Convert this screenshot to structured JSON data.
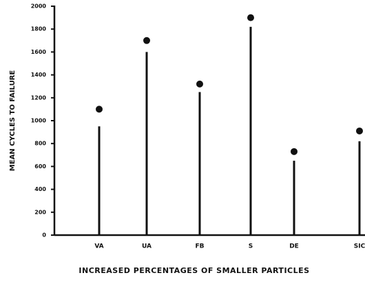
{
  "chart_data": {
    "type": "lollipop",
    "xlabel": "INCREASED PERCENTAGES OF SMALLER PARTICLES",
    "ylabel": "MEAN CYCLES TO FAILURE",
    "categories": [
      "VA",
      "UA",
      "FB",
      "S",
      "DE",
      "SIC"
    ],
    "series": [
      {
        "color": "#111111",
        "values": [
          950,
          1600,
          1250,
          1820,
          650,
          820
        ]
      },
      {
        "color": "#111111",
        "values": [
          1100,
          1700,
          1320,
          1900,
          730,
          910
        ]
      }
    ],
    "ylim": [
      0,
      2000
    ],
    "yticks": [
      0,
      200,
      400,
      600,
      800,
      1000,
      1200,
      1400,
      1600,
      1800,
      2000
    ]
  }
}
